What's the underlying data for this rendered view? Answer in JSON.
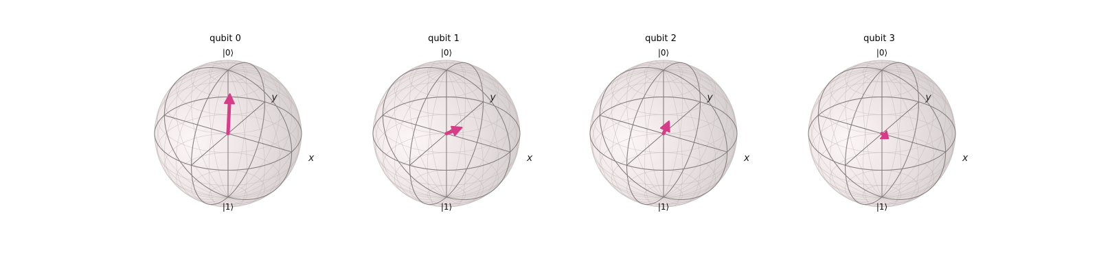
{
  "chart_data": {
    "type": "bloch_multivector",
    "axis_labels": {
      "x": "x",
      "y": "y",
      "top": "|0⟩",
      "bottom": "|1⟩"
    },
    "vector_color": "#d63c87",
    "sphere_color": "#f2e9e9",
    "qubits": [
      {
        "title": "qubit 0",
        "vector": {
          "x": 0.0,
          "y": 0.05,
          "z": 0.6
        }
      },
      {
        "title": "qubit 1",
        "vector": {
          "x": 0.1,
          "y": 0.25,
          "z": 0.0
        }
      },
      {
        "title": "qubit 2",
        "vector": {
          "x": 0.0,
          "y": 0.15,
          "z": 0.12
        }
      },
      {
        "title": "qubit 3",
        "vector": {
          "x": 0.1,
          "y": 0.0,
          "z": -0.05
        }
      }
    ]
  }
}
